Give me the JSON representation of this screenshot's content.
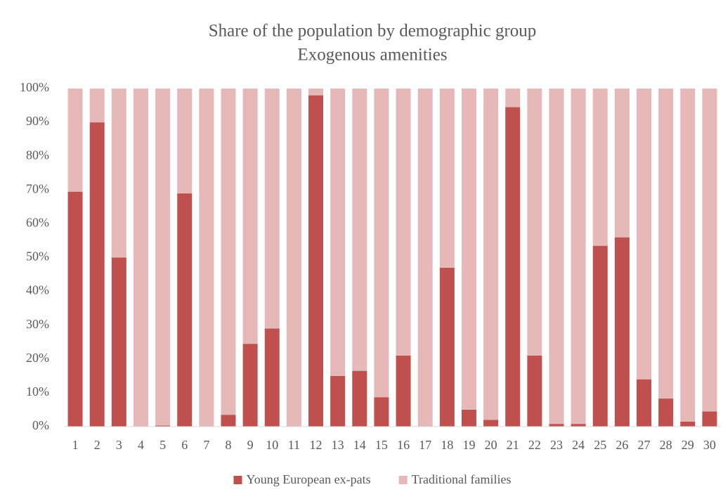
{
  "chart_data": {
    "type": "stacked-bar",
    "title": "Share of the population by demographic group",
    "subtitle": "Exogenous amenities",
    "categories": [
      "1",
      "2",
      "3",
      "4",
      "5",
      "6",
      "7",
      "8",
      "9",
      "10",
      "11",
      "12",
      "13",
      "14",
      "15",
      "16",
      "17",
      "18",
      "19",
      "20",
      "21",
      "22",
      "23",
      "24",
      "25",
      "26",
      "27",
      "28",
      "29",
      "30"
    ],
    "series": [
      {
        "name": "Young European ex-pats",
        "color": "#c0504d",
        "values": [
          69.5,
          90,
          50,
          0,
          0.3,
          69,
          0,
          3.5,
          24.5,
          29,
          0,
          98,
          15,
          16.5,
          8.7,
          21,
          0,
          47,
          5,
          2,
          94.5,
          21,
          0.8,
          0.8,
          53.5,
          56,
          14,
          8.3,
          1.5,
          4.5
        ]
      },
      {
        "name": "Traditional families",
        "color": "#e6b9b8",
        "values": [
          30.5,
          10,
          50,
          100,
          99.7,
          31,
          100,
          96.5,
          75.5,
          71,
          100,
          2,
          85,
          83.5,
          91.3,
          79,
          100,
          53,
          95,
          98,
          5.5,
          79,
          99.2,
          99.2,
          46.5,
          44,
          86,
          91.7,
          98.5,
          95.5
        ]
      }
    ],
    "ylim": [
      0,
      100
    ],
    "yticks": [
      {
        "value": 0,
        "label": "0%"
      },
      {
        "value": 10,
        "label": "10%"
      },
      {
        "value": 20,
        "label": "20%"
      },
      {
        "value": 30,
        "label": "30%"
      },
      {
        "value": 40,
        "label": "40%"
      },
      {
        "value": 50,
        "label": "50%"
      },
      {
        "value": 60,
        "label": "60%"
      },
      {
        "value": 70,
        "label": "70%"
      },
      {
        "value": 80,
        "label": "80%"
      },
      {
        "value": 90,
        "label": "90%"
      },
      {
        "value": 100,
        "label": "100%"
      }
    ],
    "grid": false,
    "legend": "bottom"
  }
}
